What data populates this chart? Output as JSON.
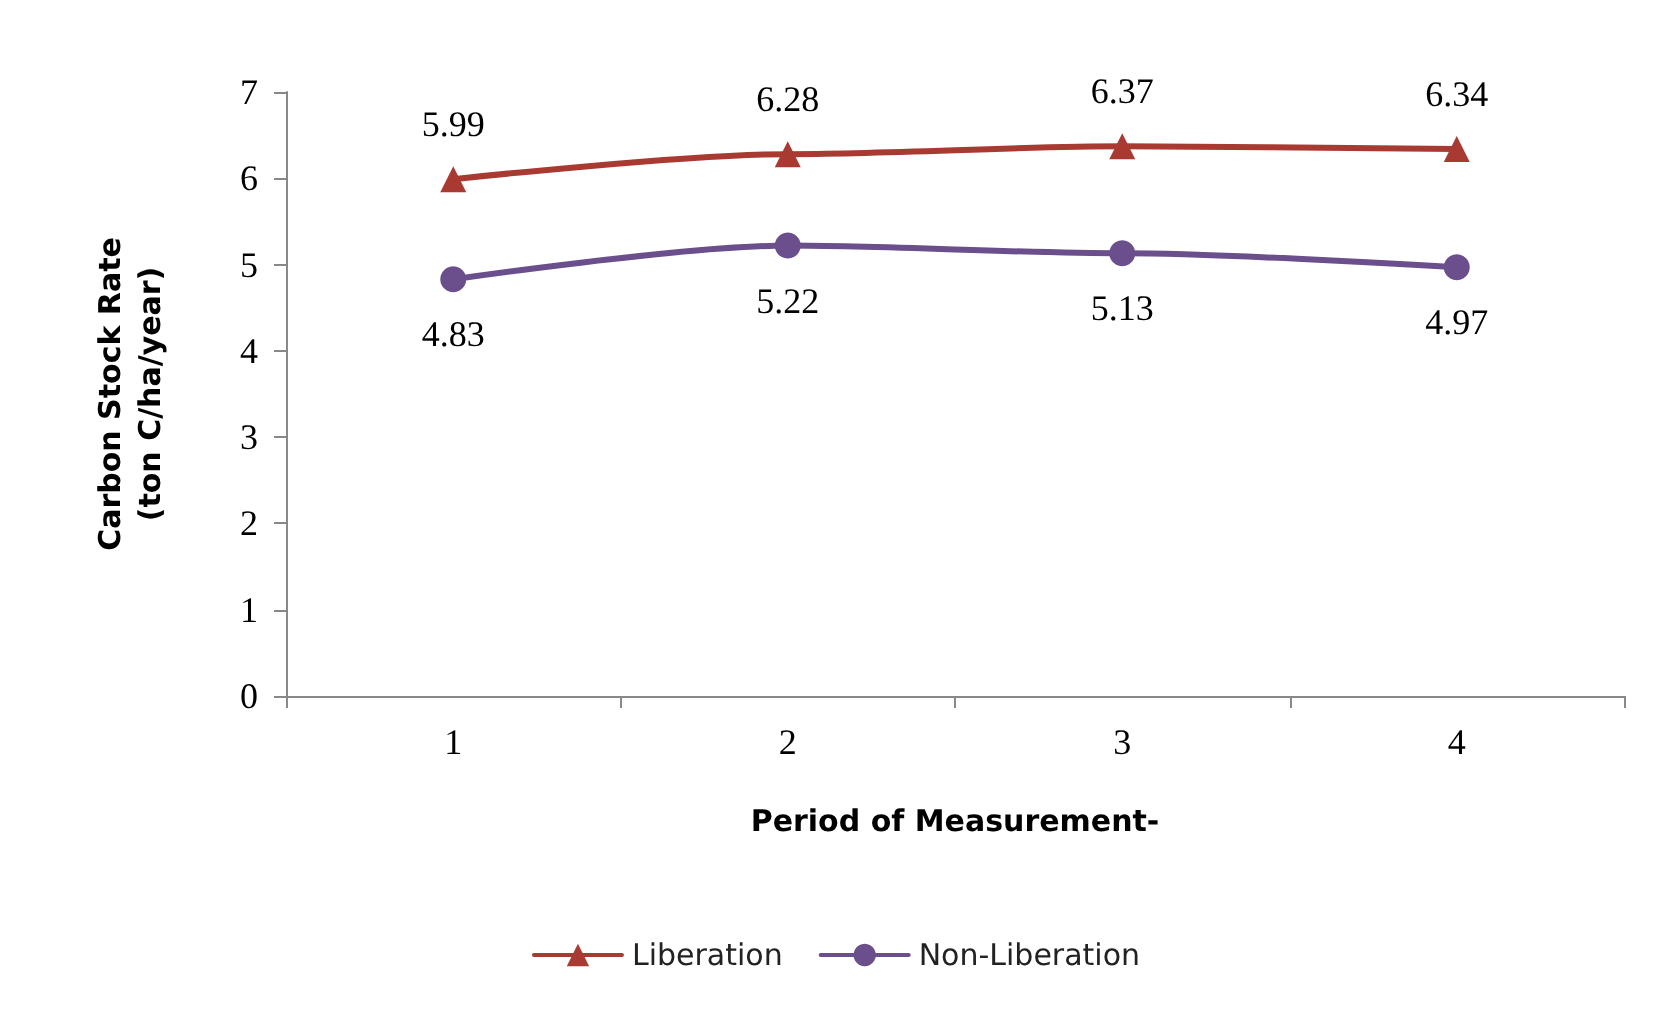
{
  "chart_data": {
    "type": "line",
    "xlabel": "Period of Measurement-",
    "ylabel": "Carbon Stock Rate\n(ton C/ha/year)",
    "categories": [
      "1",
      "2",
      "3",
      "4"
    ],
    "ylim": [
      0,
      7
    ],
    "yticks": [
      0,
      1,
      2,
      3,
      4,
      5,
      6,
      7
    ],
    "grid": false,
    "legend": "bottom",
    "data_labels": true,
    "series": [
      {
        "name": "Liberation",
        "color": "#a93a32",
        "marker": "triangle",
        "values": [
          5.99,
          6.28,
          6.37,
          6.34
        ]
      },
      {
        "name": "Non-Liberation",
        "color": "#6b4f8c",
        "marker": "circle",
        "values": [
          4.83,
          5.22,
          5.13,
          4.97
        ]
      }
    ]
  }
}
